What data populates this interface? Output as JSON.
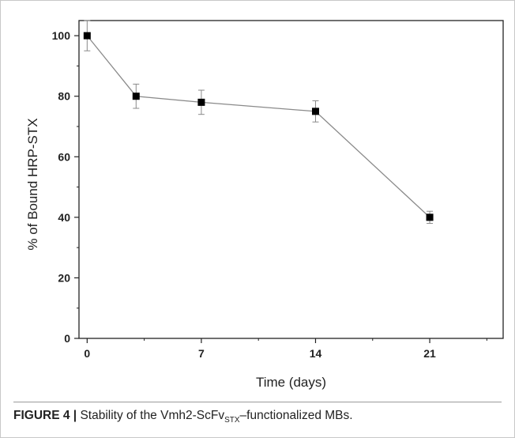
{
  "chart_data": {
    "type": "line",
    "x": [
      0,
      3,
      7,
      14,
      21
    ],
    "y": [
      100,
      80,
      78,
      75,
      40
    ],
    "error": [
      5,
      4,
      4,
      3.5,
      2
    ],
    "xticks": [
      0,
      7,
      14,
      21
    ],
    "yticks": [
      0,
      20,
      40,
      60,
      80,
      100
    ],
    "xlim": [
      -0.5,
      25.5
    ],
    "ylim": [
      0,
      105
    ],
    "xlabel": "Time (days)",
    "ylabel": "% of Bound HRP-STX",
    "grid": false,
    "legend": "none",
    "marker": "square",
    "colors": {
      "line": "#8a8a8a",
      "marker": "#000000",
      "errorbar": "#8a8a8a"
    }
  },
  "caption": {
    "label": "FIGURE 4 |",
    "text_before": " Stability of the Vmh2-ScFv",
    "subscript": "STX",
    "text_after": "–functionalized MBs."
  }
}
